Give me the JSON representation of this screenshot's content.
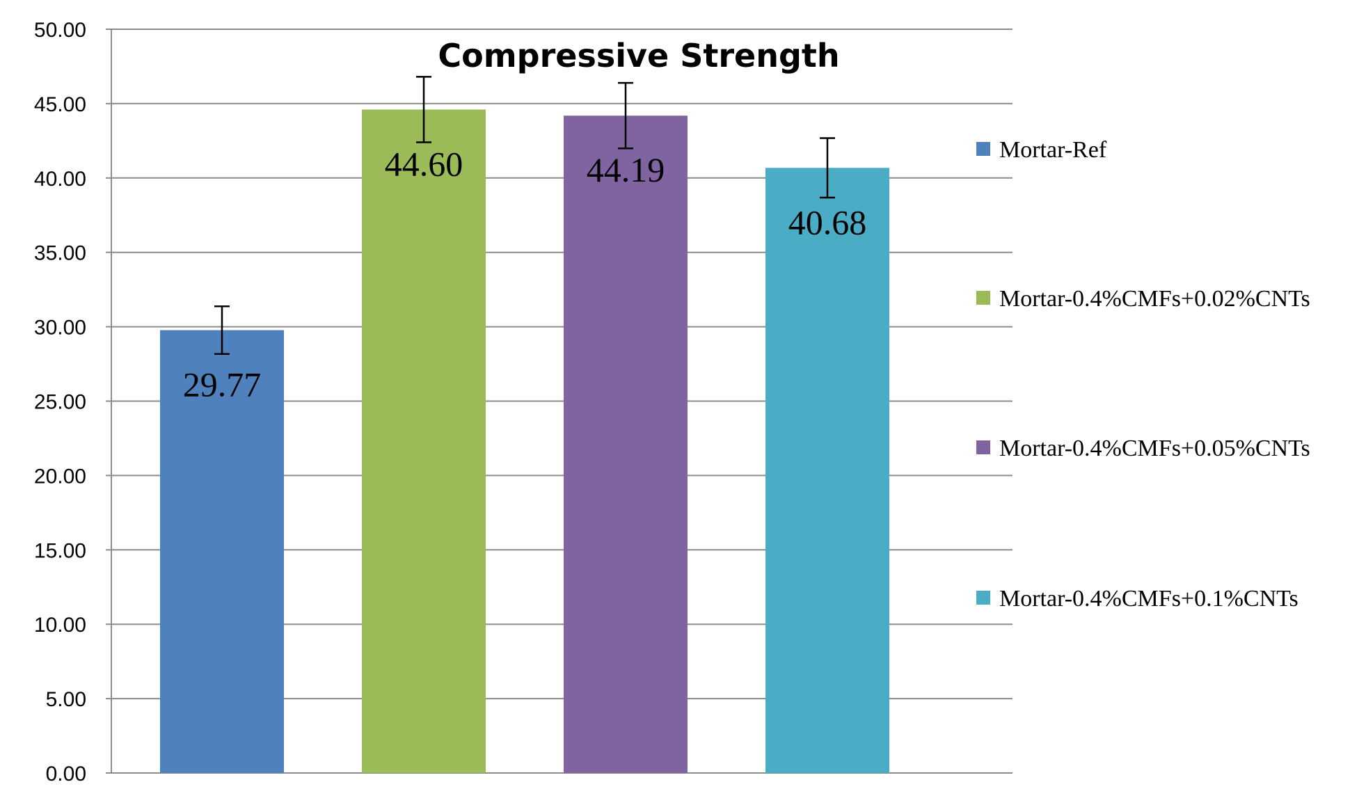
{
  "chart_data": {
    "type": "bar",
    "title": "Compressive Strength",
    "xlabel": "",
    "ylabel": "",
    "ylim": [
      0,
      50
    ],
    "yticks": [
      "0.00",
      "5.00",
      "10.00",
      "15.00",
      "20.00",
      "25.00",
      "30.00",
      "35.00",
      "40.00",
      "45.00",
      "50.00"
    ],
    "grid": true,
    "legend_position": "right",
    "series": [
      {
        "name": "Mortar-Ref",
        "value": 29.77,
        "label": "29.77",
        "error": 1.6,
        "color": "#4f81bd"
      },
      {
        "name": "Mortar-0.4%CMFs+0.02%CNTs",
        "value": 44.6,
        "label": "44.60",
        "error": 2.2,
        "color": "#9bbb59"
      },
      {
        "name": "Mortar-0.4%CMFs+0.05%CNTs",
        "value": 44.19,
        "label": "44.19",
        "error": 2.2,
        "color": "#8064a2"
      },
      {
        "name": "Mortar-0.4%CMFs+0.1%CNTs",
        "value": 40.68,
        "label": "40.68",
        "error": 2.0,
        "color": "#4bacc6"
      }
    ]
  }
}
